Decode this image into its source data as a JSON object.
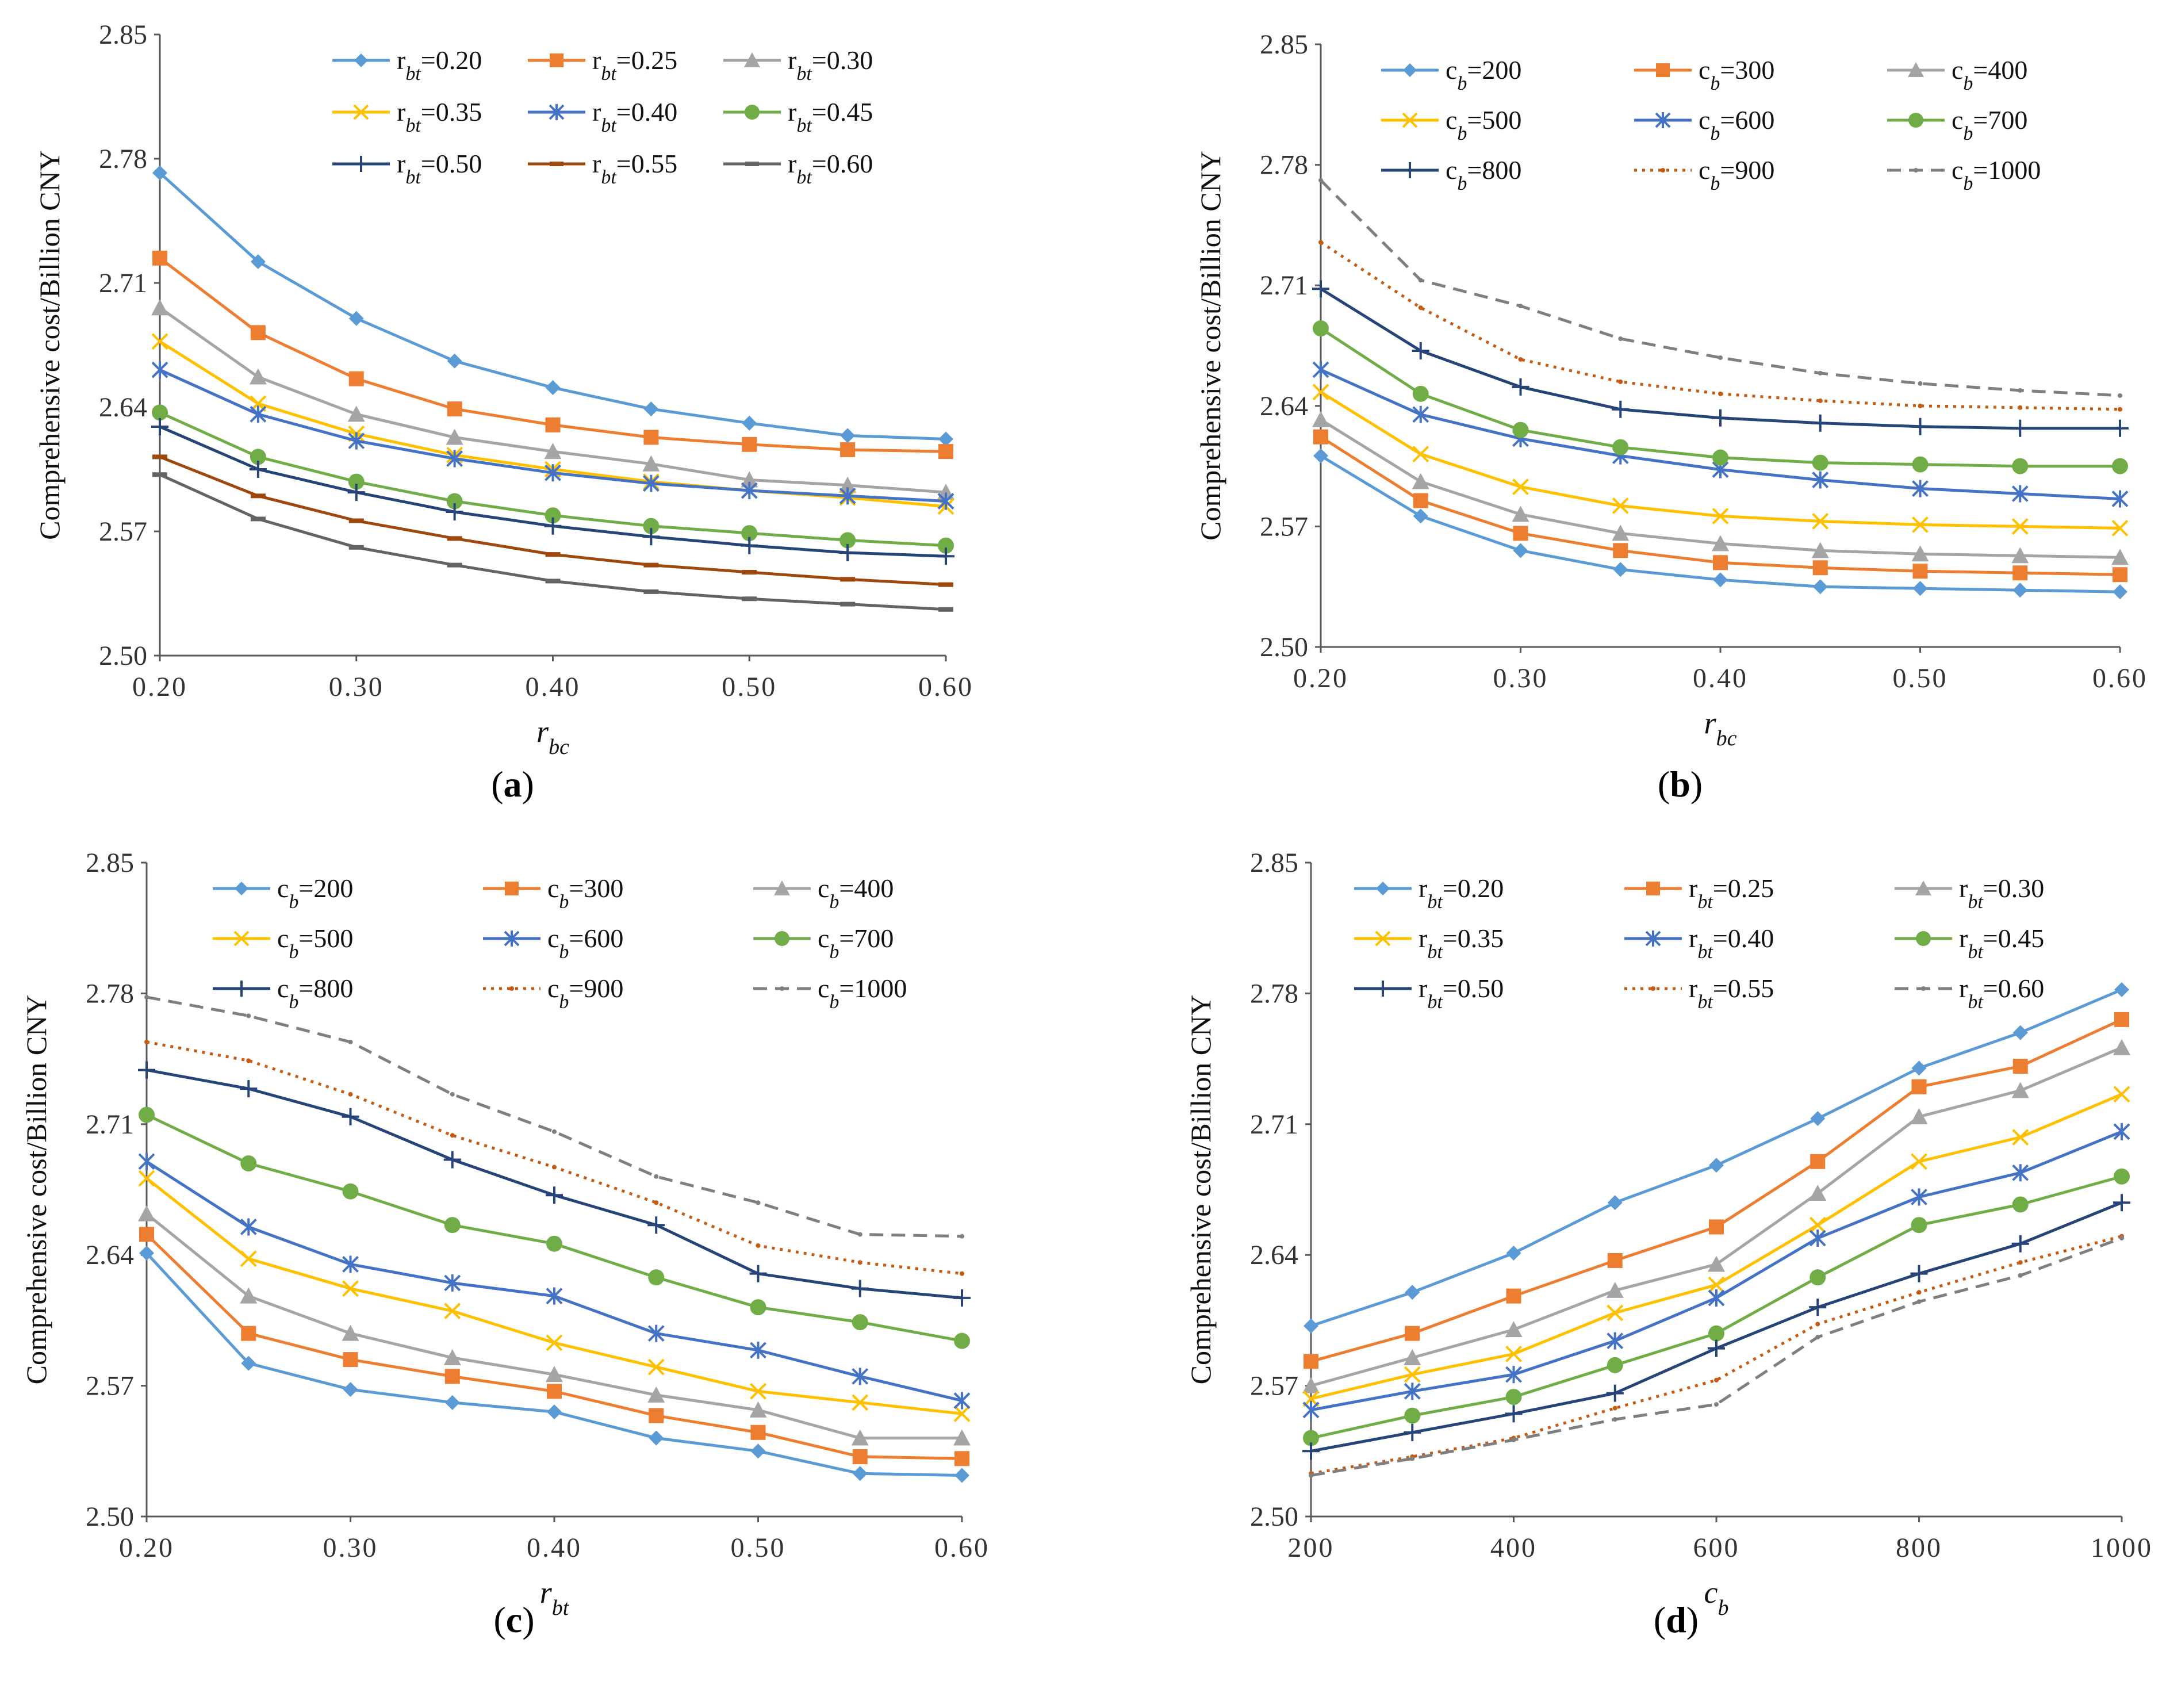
{
  "figure": {
    "panels": [
      {
        "caption_letter": "a"
      },
      {
        "caption_letter": "b"
      },
      {
        "caption_letter": "c"
      },
      {
        "caption_letter": "d"
      }
    ]
  },
  "chart_data": [
    {
      "type": "line",
      "ylabel": "Comprehensive cost/Billion CNY",
      "xlabel_base": "r",
      "xlabel_sub": "bc",
      "x": [
        0.2,
        0.25,
        0.3,
        0.35,
        0.4,
        0.45,
        0.5,
        0.55,
        0.6
      ],
      "xticks": [
        "0.20",
        "0.30",
        "0.40",
        "0.50",
        "0.60"
      ],
      "xtick_values": [
        0.2,
        0.3,
        0.4,
        0.5,
        0.6
      ],
      "xlim": [
        0.2,
        0.6
      ],
      "yticks": [
        "2.50",
        "2.57",
        "2.64",
        "2.71",
        "2.78",
        "2.85"
      ],
      "ylim": [
        2.5,
        2.85
      ],
      "series": [
        {
          "name": "r_bt=0.20",
          "label_base": "r",
          "label_sub": "bt",
          "label_val": "=0.20",
          "color": "#5B9BD5",
          "marker": "diamond",
          "dash": "solid",
          "values": [
            2.772,
            2.722,
            2.69,
            2.666,
            2.651,
            2.639,
            2.631,
            2.624,
            2.622
          ]
        },
        {
          "name": "r_bt=0.25",
          "label_base": "r",
          "label_sub": "bt",
          "label_val": "=0.25",
          "color": "#ED7D31",
          "marker": "square",
          "dash": "solid",
          "values": [
            2.724,
            2.682,
            2.656,
            2.639,
            2.63,
            2.623,
            2.619,
            2.616,
            2.615
          ]
        },
        {
          "name": "r_bt=0.30",
          "label_base": "r",
          "label_sub": "bt",
          "label_val": "=0.30",
          "color": "#A5A5A5",
          "marker": "triangle",
          "dash": "solid",
          "values": [
            2.696,
            2.657,
            2.636,
            2.623,
            2.615,
            2.608,
            2.599,
            2.596,
            2.592
          ]
        },
        {
          "name": "r_bt=0.35",
          "label_base": "r",
          "label_sub": "bt",
          "label_val": "=0.35",
          "color": "#FFC000",
          "marker": "x",
          "dash": "solid",
          "values": [
            2.677,
            2.642,
            2.625,
            2.613,
            2.605,
            2.598,
            2.593,
            2.589,
            2.584
          ]
        },
        {
          "name": "r_bt=0.40",
          "label_base": "r",
          "label_sub": "bt",
          "label_val": "=0.40",
          "color": "#4472C4",
          "marker": "star",
          "dash": "solid",
          "values": [
            2.661,
            2.636,
            2.621,
            2.611,
            2.603,
            2.597,
            2.593,
            2.59,
            2.587
          ]
        },
        {
          "name": "r_bt=0.45",
          "label_base": "r",
          "label_sub": "bt",
          "label_val": "=0.45",
          "color": "#70AD47",
          "marker": "circle",
          "dash": "solid",
          "values": [
            2.637,
            2.612,
            2.598,
            2.587,
            2.579,
            2.573,
            2.569,
            2.565,
            2.562
          ]
        },
        {
          "name": "r_bt=0.50",
          "label_base": "r",
          "label_sub": "bt",
          "label_val": "=0.50",
          "color": "#264478",
          "marker": "plus",
          "dash": "solid",
          "values": [
            2.629,
            2.605,
            2.592,
            2.581,
            2.573,
            2.567,
            2.562,
            2.558,
            2.556
          ]
        },
        {
          "name": "r_bt=0.55",
          "label_base": "r",
          "label_sub": "bt",
          "label_val": "=0.55",
          "color": "#9E480E",
          "marker": "dash",
          "dash": "solid",
          "values": [
            2.612,
            2.59,
            2.576,
            2.566,
            2.557,
            2.551,
            2.547,
            2.543,
            2.54
          ]
        },
        {
          "name": "r_bt=0.60",
          "label_base": "r",
          "label_sub": "bt",
          "label_val": "=0.60",
          "color": "#636363",
          "marker": "dash",
          "dash": "solid",
          "values": [
            2.602,
            2.577,
            2.561,
            2.551,
            2.542,
            2.536,
            2.532,
            2.529,
            2.526
          ]
        }
      ]
    },
    {
      "type": "line",
      "ylabel": "Comprehensive cost/Billion CNY",
      "xlabel_base": "r",
      "xlabel_sub": "bc",
      "x": [
        0.2,
        0.25,
        0.3,
        0.35,
        0.4,
        0.45,
        0.5,
        0.55,
        0.6
      ],
      "xticks": [
        "0.20",
        "0.30",
        "0.40",
        "0.50",
        "0.60"
      ],
      "xtick_values": [
        0.2,
        0.3,
        0.4,
        0.5,
        0.6
      ],
      "xlim": [
        0.2,
        0.6
      ],
      "yticks": [
        "2.50",
        "2.57",
        "2.64",
        "2.71",
        "2.78",
        "2.85"
      ],
      "ylim": [
        2.5,
        2.85
      ],
      "series": [
        {
          "name": "c_b=200",
          "label_base": "c",
          "label_sub": "b",
          "label_val": "=200",
          "color": "#5B9BD5",
          "marker": "diamond",
          "dash": "solid",
          "values": [
            2.611,
            2.576,
            2.556,
            2.545,
            2.539,
            2.535,
            2.534,
            2.533,
            2.532
          ]
        },
        {
          "name": "c_b=300",
          "label_base": "c",
          "label_sub": "b",
          "label_val": "=300",
          "color": "#ED7D31",
          "marker": "square",
          "dash": "solid",
          "values": [
            2.622,
            2.585,
            2.566,
            2.556,
            2.549,
            2.546,
            2.544,
            2.543,
            2.542
          ]
        },
        {
          "name": "c_b=400",
          "label_base": "c",
          "label_sub": "b",
          "label_val": "=400",
          "color": "#A5A5A5",
          "marker": "triangle",
          "dash": "solid",
          "values": [
            2.632,
            2.596,
            2.577,
            2.566,
            2.56,
            2.556,
            2.554,
            2.553,
            2.552
          ]
        },
        {
          "name": "c_b=500",
          "label_base": "c",
          "label_sub": "b",
          "label_val": "=500",
          "color": "#FFC000",
          "marker": "x",
          "dash": "solid",
          "values": [
            2.648,
            2.612,
            2.593,
            2.582,
            2.576,
            2.573,
            2.571,
            2.57,
            2.569
          ]
        },
        {
          "name": "c_b=600",
          "label_base": "c",
          "label_sub": "b",
          "label_val": "=600",
          "color": "#4472C4",
          "marker": "star",
          "dash": "solid",
          "values": [
            2.661,
            2.635,
            2.621,
            2.611,
            2.603,
            2.597,
            2.592,
            2.589,
            2.586
          ]
        },
        {
          "name": "c_b=700",
          "label_base": "c",
          "label_sub": "b",
          "label_val": "=700",
          "color": "#70AD47",
          "marker": "circle",
          "dash": "solid",
          "values": [
            2.685,
            2.647,
            2.626,
            2.616,
            2.61,
            2.607,
            2.606,
            2.605,
            2.605
          ]
        },
        {
          "name": "c_b=800",
          "label_base": "c",
          "label_sub": "b",
          "label_val": "=800",
          "color": "#264478",
          "marker": "plus",
          "dash": "solid",
          "values": [
            2.708,
            2.672,
            2.651,
            2.638,
            2.633,
            2.63,
            2.628,
            2.627,
            2.627
          ]
        },
        {
          "name": "c_b=900",
          "label_base": "c",
          "label_sub": "b",
          "label_val": "=900",
          "color": "#C55A11",
          "marker": "none",
          "dash": "dot",
          "values": [
            2.735,
            2.697,
            2.667,
            2.654,
            2.647,
            2.643,
            2.64,
            2.639,
            2.638
          ]
        },
        {
          "name": "c_b=1000",
          "label_base": "c",
          "label_sub": "b",
          "label_val": "=1000",
          "color": "#7F7F7F",
          "marker": "none",
          "dash": "dash",
          "values": [
            2.771,
            2.713,
            2.698,
            2.679,
            2.668,
            2.659,
            2.653,
            2.649,
            2.646
          ]
        }
      ]
    },
    {
      "type": "line",
      "ylabel": "Comprehensive cost/Billion CNY",
      "xlabel_base": "r",
      "xlabel_sub": "bt",
      "x": [
        0.2,
        0.25,
        0.3,
        0.35,
        0.4,
        0.45,
        0.5,
        0.55,
        0.6
      ],
      "xticks": [
        "0.20",
        "0.30",
        "0.40",
        "0.50",
        "0.60"
      ],
      "xtick_values": [
        0.2,
        0.3,
        0.4,
        0.5,
        0.6
      ],
      "xlim": [
        0.2,
        0.6
      ],
      "yticks": [
        "2.50",
        "2.57",
        "2.64",
        "2.71",
        "2.78",
        "2.85"
      ],
      "ylim": [
        2.5,
        2.85
      ],
      "series": [
        {
          "name": "c_b=200",
          "label_base": "c",
          "label_sub": "b",
          "label_val": "=200",
          "color": "#5B9BD5",
          "marker": "diamond",
          "dash": "solid",
          "values": [
            2.641,
            2.582,
            2.568,
            2.561,
            2.556,
            2.542,
            2.535,
            2.523,
            2.522
          ]
        },
        {
          "name": "c_b=300",
          "label_base": "c",
          "label_sub": "b",
          "label_val": "=300",
          "color": "#ED7D31",
          "marker": "square",
          "dash": "solid",
          "values": [
            2.651,
            2.598,
            2.584,
            2.575,
            2.567,
            2.554,
            2.545,
            2.532,
            2.531
          ]
        },
        {
          "name": "c_b=400",
          "label_base": "c",
          "label_sub": "b",
          "label_val": "=400",
          "color": "#A5A5A5",
          "marker": "triangle",
          "dash": "solid",
          "values": [
            2.662,
            2.618,
            2.598,
            2.585,
            2.576,
            2.565,
            2.557,
            2.542,
            2.542
          ]
        },
        {
          "name": "c_b=500",
          "label_base": "c",
          "label_sub": "b",
          "label_val": "=500",
          "color": "#FFC000",
          "marker": "x",
          "dash": "solid",
          "values": [
            2.681,
            2.638,
            2.622,
            2.61,
            2.593,
            2.58,
            2.567,
            2.561,
            2.555
          ]
        },
        {
          "name": "c_b=600",
          "label_base": "c",
          "label_sub": "b",
          "label_val": "=600",
          "color": "#4472C4",
          "marker": "star",
          "dash": "solid",
          "values": [
            2.69,
            2.655,
            2.635,
            2.625,
            2.618,
            2.598,
            2.589,
            2.575,
            2.562
          ]
        },
        {
          "name": "c_b=700",
          "label_base": "c",
          "label_sub": "b",
          "label_val": "=700",
          "color": "#70AD47",
          "marker": "circle",
          "dash": "solid",
          "values": [
            2.715,
            2.689,
            2.674,
            2.656,
            2.646,
            2.628,
            2.612,
            2.604,
            2.594
          ]
        },
        {
          "name": "c_b=800",
          "label_base": "c",
          "label_sub": "b",
          "label_val": "=800",
          "color": "#264478",
          "marker": "plus",
          "dash": "solid",
          "values": [
            2.739,
            2.729,
            2.714,
            2.691,
            2.672,
            2.656,
            2.63,
            2.622,
            2.617
          ]
        },
        {
          "name": "c_b=900",
          "label_base": "c",
          "label_sub": "b",
          "label_val": "=900",
          "color": "#C55A11",
          "marker": "none",
          "dash": "dot",
          "values": [
            2.754,
            2.744,
            2.726,
            2.704,
            2.687,
            2.668,
            2.645,
            2.636,
            2.63
          ]
        },
        {
          "name": "c_b=1000",
          "label_base": "c",
          "label_sub": "b",
          "label_val": "=1000",
          "color": "#7F7F7F",
          "marker": "none",
          "dash": "dash",
          "values": [
            2.778,
            2.768,
            2.754,
            2.726,
            2.706,
            2.682,
            2.668,
            2.651,
            2.65
          ]
        }
      ]
    },
    {
      "type": "line",
      "ylabel": "Comprehensive cost/Billion CNY",
      "xlabel_base": "c",
      "xlabel_sub": "b",
      "x": [
        200,
        300,
        400,
        500,
        600,
        700,
        800,
        900,
        1000
      ],
      "xticks": [
        "200",
        "400",
        "600",
        "800",
        "1000"
      ],
      "xtick_values": [
        200,
        400,
        600,
        800,
        1000
      ],
      "xlim": [
        200,
        1000
      ],
      "yticks": [
        "2.50",
        "2.57",
        "2.64",
        "2.71",
        "2.78",
        "2.85"
      ],
      "ylim": [
        2.5,
        2.85
      ],
      "series": [
        {
          "name": "r_bt=0.20",
          "label_base": "r",
          "label_sub": "bt",
          "label_val": "=0.20",
          "color": "#5B9BD5",
          "marker": "diamond",
          "dash": "solid",
          "values": [
            2.602,
            2.62,
            2.641,
            2.668,
            2.688,
            2.713,
            2.74,
            2.759,
            2.782
          ]
        },
        {
          "name": "r_bt=0.25",
          "label_base": "r",
          "label_sub": "bt",
          "label_val": "=0.25",
          "color": "#ED7D31",
          "marker": "square",
          "dash": "solid",
          "values": [
            2.583,
            2.598,
            2.618,
            2.637,
            2.655,
            2.69,
            2.73,
            2.741,
            2.766
          ]
        },
        {
          "name": "r_bt=0.30",
          "label_base": "r",
          "label_sub": "bt",
          "label_val": "=0.30",
          "color": "#A5A5A5",
          "marker": "triangle",
          "dash": "solid",
          "values": [
            2.57,
            2.585,
            2.6,
            2.621,
            2.635,
            2.673,
            2.714,
            2.728,
            2.751
          ]
        },
        {
          "name": "r_bt=0.35",
          "label_base": "r",
          "label_sub": "bt",
          "label_val": "=0.35",
          "color": "#FFC000",
          "marker": "x",
          "dash": "solid",
          "values": [
            2.563,
            2.576,
            2.587,
            2.609,
            2.624,
            2.656,
            2.69,
            2.703,
            2.726
          ]
        },
        {
          "name": "r_bt=0.40",
          "label_base": "r",
          "label_sub": "bt",
          "label_val": "=0.40",
          "color": "#4472C4",
          "marker": "star",
          "dash": "solid",
          "values": [
            2.557,
            2.567,
            2.576,
            2.594,
            2.617,
            2.649,
            2.671,
            2.684,
            2.706
          ]
        },
        {
          "name": "r_bt=0.45",
          "label_base": "r",
          "label_sub": "bt",
          "label_val": "=0.45",
          "color": "#70AD47",
          "marker": "circle",
          "dash": "solid",
          "values": [
            2.542,
            2.554,
            2.564,
            2.581,
            2.598,
            2.628,
            2.656,
            2.667,
            2.682
          ]
        },
        {
          "name": "r_bt=0.50",
          "label_base": "r",
          "label_sub": "bt",
          "label_val": "=0.50",
          "color": "#264478",
          "marker": "plus",
          "dash": "solid",
          "values": [
            2.535,
            2.545,
            2.555,
            2.566,
            2.59,
            2.612,
            2.63,
            2.646,
            2.668
          ]
        },
        {
          "name": "r_bt=0.55",
          "label_base": "r",
          "label_sub": "bt",
          "label_val": "=0.55",
          "color": "#C55A11",
          "marker": "none",
          "dash": "dot",
          "values": [
            2.523,
            2.532,
            2.542,
            2.558,
            2.573,
            2.603,
            2.62,
            2.636,
            2.65
          ]
        },
        {
          "name": "r_bt=0.60",
          "label_base": "r",
          "label_sub": "bt",
          "label_val": "=0.60",
          "color": "#7F7F7F",
          "marker": "none",
          "dash": "dash",
          "values": [
            2.522,
            2.531,
            2.541,
            2.552,
            2.56,
            2.596,
            2.615,
            2.629,
            2.649
          ]
        }
      ]
    }
  ]
}
